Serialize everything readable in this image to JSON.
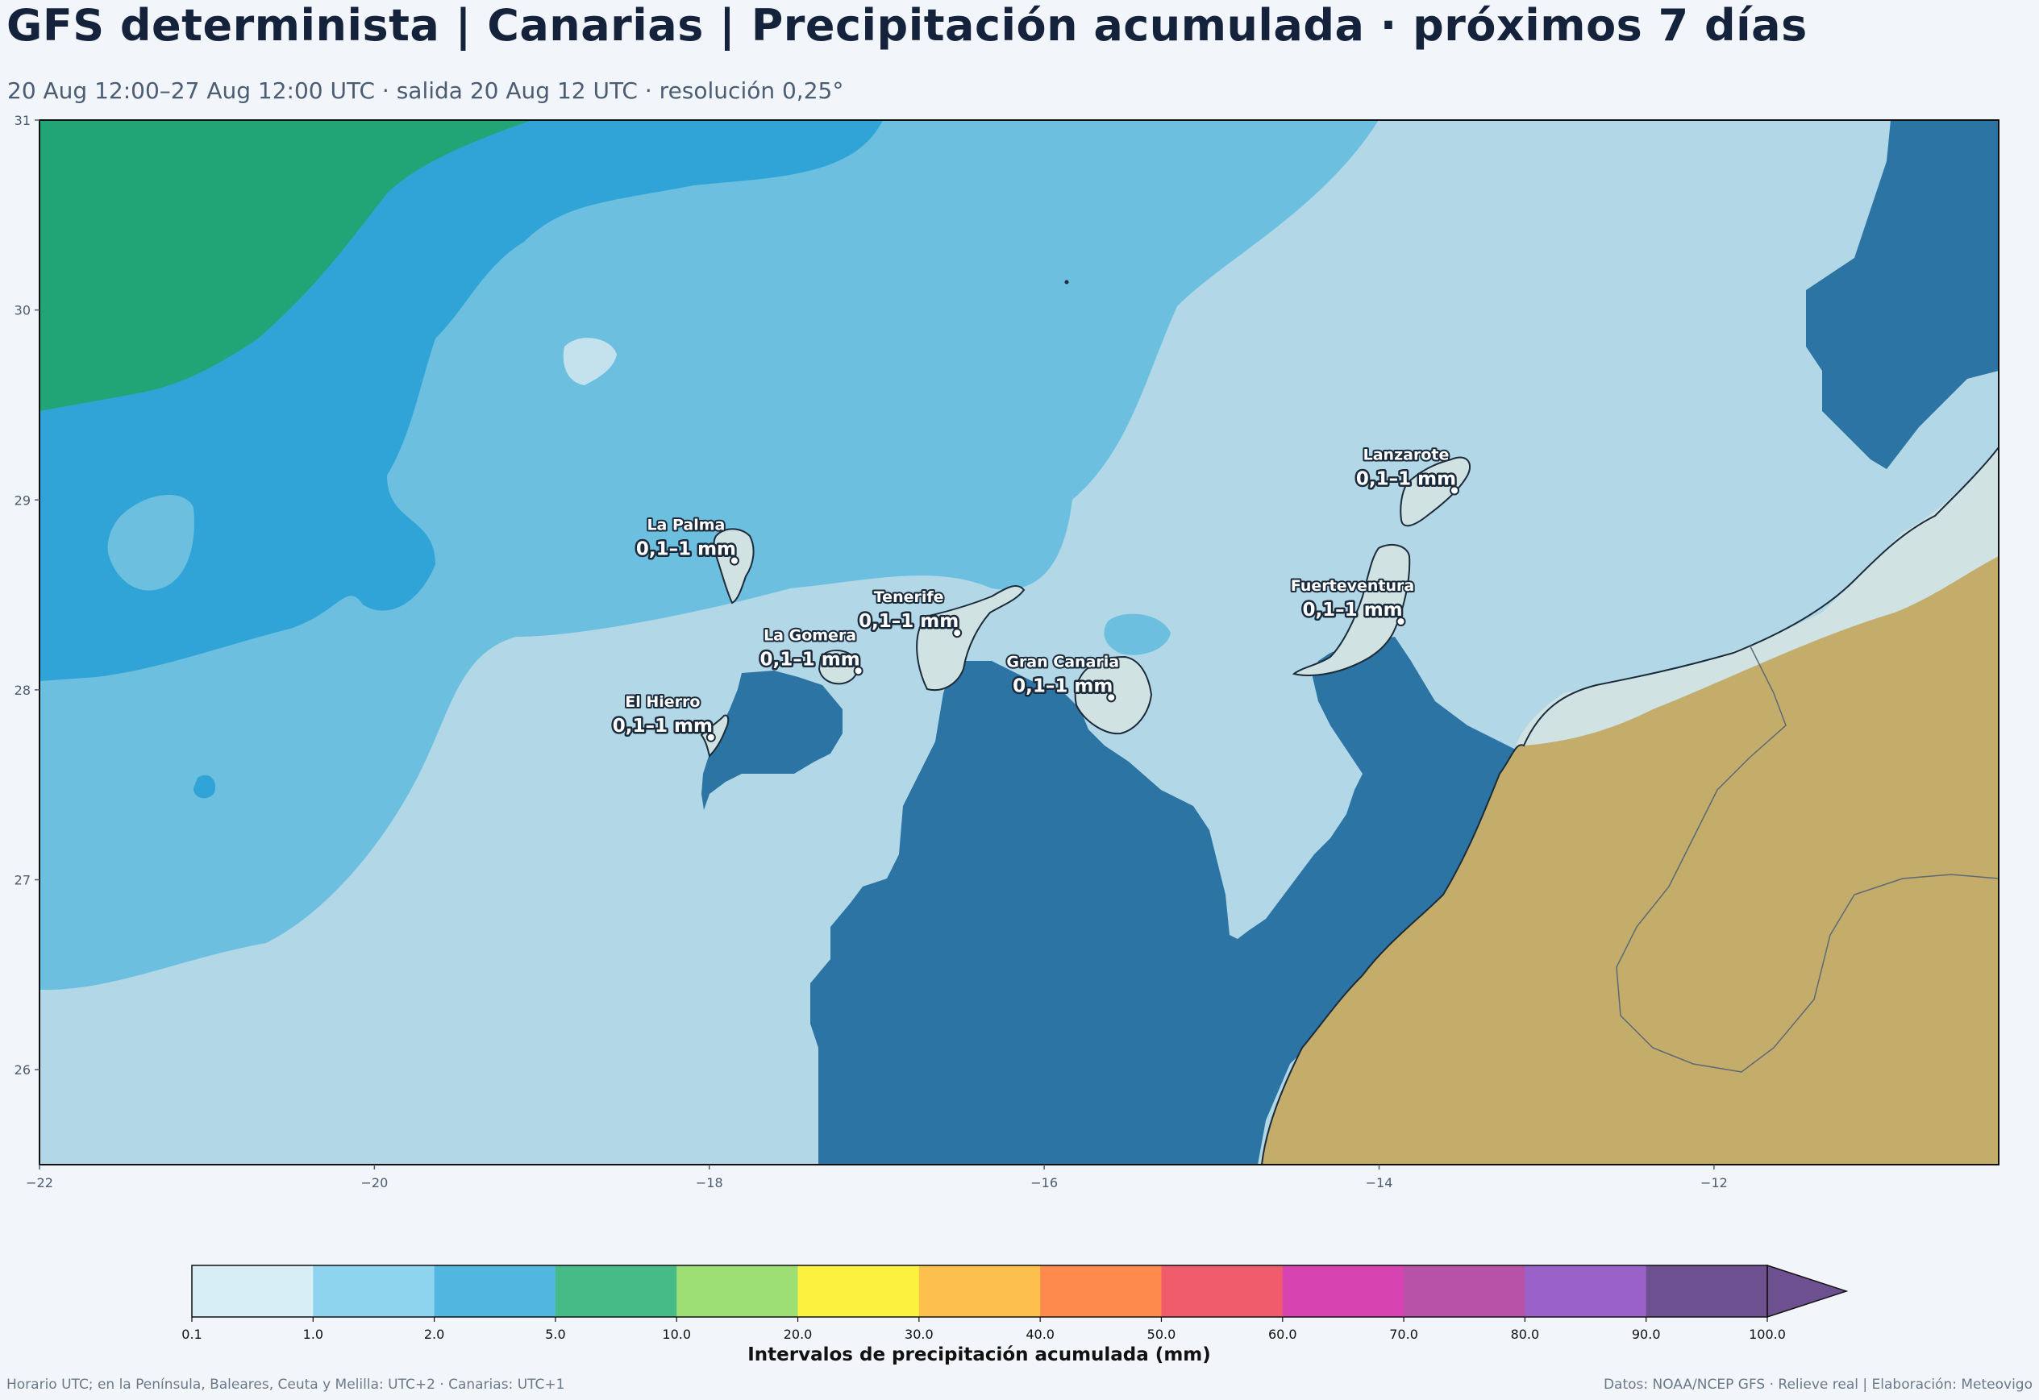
{
  "title": "GFS determinista | Canarias | Precipitación acumulada · próximos 7 días",
  "subtitle": "20 Aug 12:00–27 Aug 12:00 UTC · salida 20 Aug 12 UTC · resolución 0,25°",
  "map": {
    "lon_range": [
      -22,
      -10.3
    ],
    "lat_range": [
      25.5,
      31
    ],
    "x_ticks": [
      "−22",
      "−20",
      "−18",
      "−16",
      "−14",
      "−12"
    ],
    "x_tick_values": [
      -22,
      -20,
      -18,
      -16,
      -14,
      -12
    ],
    "y_ticks": [
      "31",
      "30",
      "29",
      "28",
      "27",
      "26"
    ],
    "y_tick_values": [
      31,
      30,
      29,
      28,
      27,
      26
    ],
    "colors": {
      "band_0_1_1": "#b2d7e7",
      "band_1_2": "#6cbfdf",
      "band_2_5": "#30a4d7",
      "band_5_10": "#21a577",
      "band_below": "#2c74a3",
      "land_desert": "#c4ad6a",
      "land_light": "#d1e2e3"
    }
  },
  "islands": [
    {
      "name": "La Palma",
      "value": "0,1–1 mm",
      "lon": -17.85,
      "lat": 28.68
    },
    {
      "name": "Tenerife",
      "value": "0,1–1 mm",
      "lon": -16.52,
      "lat": 28.3
    },
    {
      "name": "La Gomera",
      "value": "0,1–1 mm",
      "lon": -17.11,
      "lat": 28.1
    },
    {
      "name": "El Hierro",
      "value": "0,1–1 mm",
      "lon": -17.99,
      "lat": 27.75
    },
    {
      "name": "Gran Canaria",
      "value": "0,1–1 mm",
      "lon": -15.6,
      "lat": 27.96
    },
    {
      "name": "Lanzarote",
      "value": "0,1–1 mm",
      "lon": -13.55,
      "lat": 29.05
    },
    {
      "name": "Fuerteventura",
      "value": "0,1–1 mm",
      "lon": -13.87,
      "lat": 28.36
    }
  ],
  "colorbar": {
    "ticks": [
      "0.1",
      "1.0",
      "2.0",
      "5.0",
      "10.0",
      "20.0",
      "30.0",
      "40.0",
      "50.0",
      "60.0",
      "70.0",
      "80.0",
      "90.0",
      "100.0"
    ],
    "colors": [
      "#d7eef6",
      "#8fd4ee",
      "#52b7e0",
      "#46bb87",
      "#9ddf75",
      "#fdf13f",
      "#fec04d",
      "#fe8a4d",
      "#f05c6b",
      "#d843b2",
      "#b852a9",
      "#9a62c8",
      "#6d5090"
    ],
    "label": "Intervalos de precipitación acumulada (mm)"
  },
  "footer": {
    "left": "Horario UTC; en la Península, Baleares, Ceuta y Melilla: UTC+2 · Canarias: UTC+1",
    "right": "Datos: NOAA/NCEP GFS · Relieve real | Elaboración: Meteovigo"
  }
}
